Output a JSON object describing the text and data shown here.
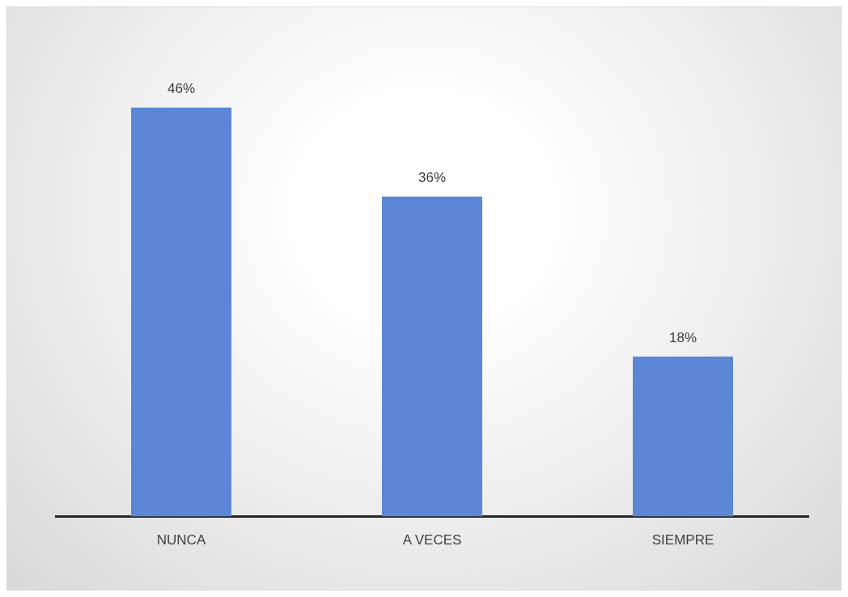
{
  "chart_data": {
    "type": "bar",
    "categories": [
      "NUNCA",
      "A VECES",
      "SIEMPRE"
    ],
    "values": [
      46,
      36,
      18
    ],
    "value_labels": [
      "46%",
      "36%",
      "18%"
    ],
    "color": "#5b87d6",
    "grid": false,
    "legend": false
  }
}
